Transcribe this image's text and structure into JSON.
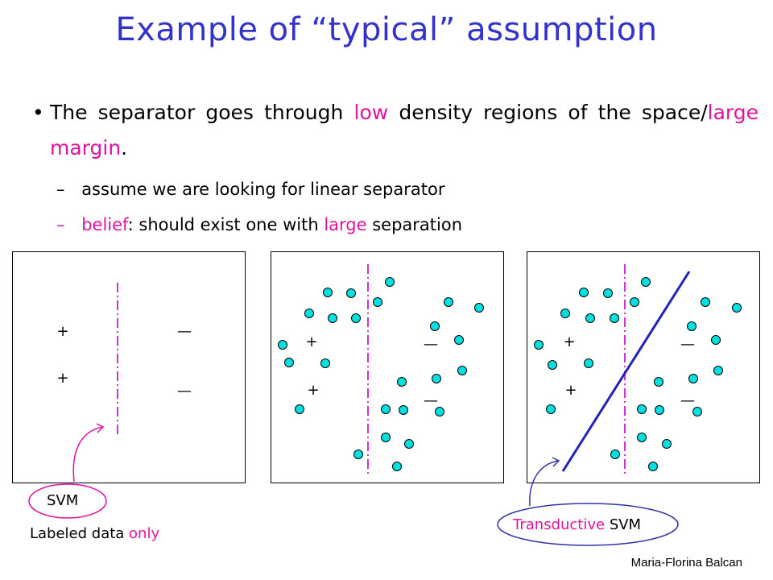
{
  "slide": {
    "title": "Example of “typical” assumption",
    "bullet": {
      "marker": "•",
      "pre": "The separator goes through ",
      "em1": "low",
      "mid": " density regions of the space/",
      "em2": "large margin",
      "post": "."
    },
    "sub1": {
      "marker": "–",
      "text": "assume we are looking for linear separator"
    },
    "sub2": {
      "marker": "–",
      "em1": "belief",
      "mid": ": should exist one with ",
      "em2": "large",
      "post": " separation"
    },
    "labels": {
      "svm": "SVM",
      "labeled_pre": "Labeled data ",
      "labeled_em": "only",
      "tsvm_em": "Transductive",
      "tsvm_rest": " SVM"
    },
    "footer": "Maria-Florina Balcan",
    "marks": {
      "plus": "+",
      "minus": "—"
    },
    "colors": {
      "title": "#3333cc",
      "accent": "#e0149b",
      "point_fill": "#00e0e0",
      "svm_line": "#cc33cc",
      "tsvm_line": "#2222bb",
      "arrow_svm": "#e0149b",
      "arrow_tsvm": "#3333aa"
    }
  }
}
